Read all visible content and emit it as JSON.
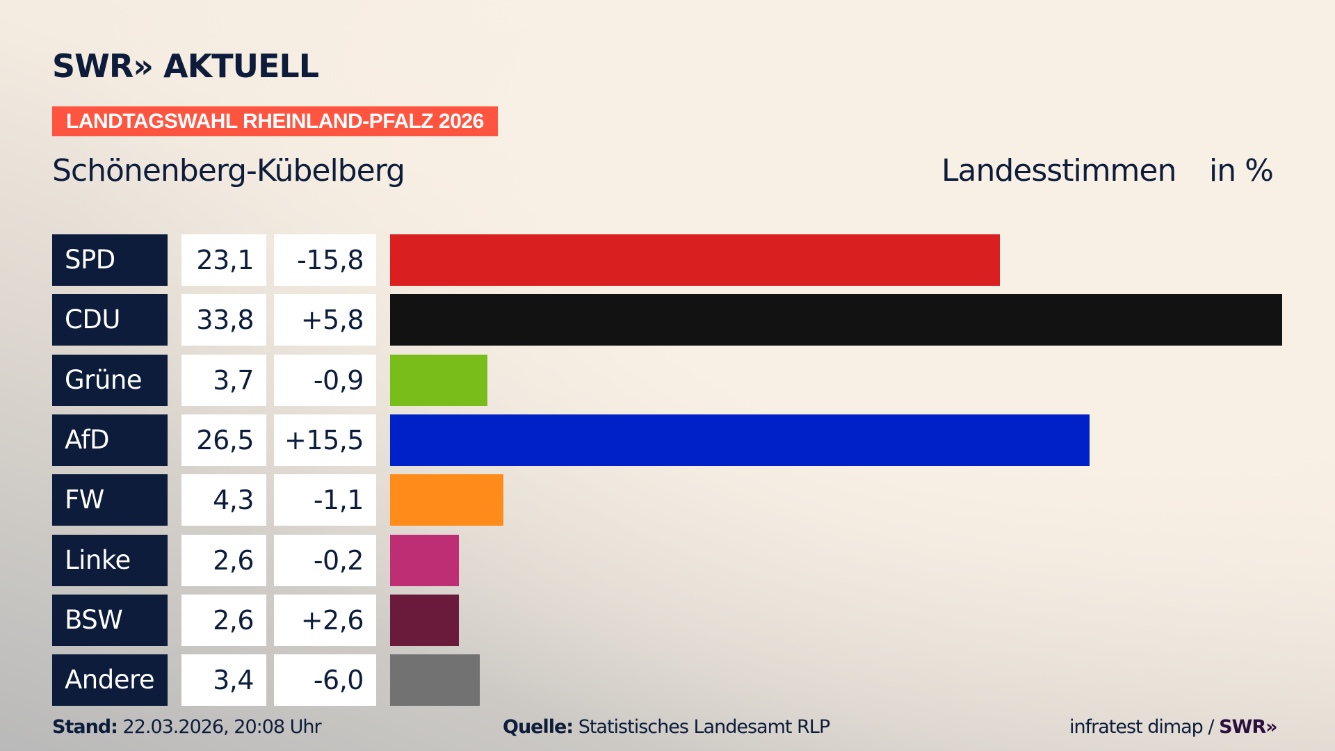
{
  "header": {
    "logo": "SWR» AKTUELL",
    "banner": "LANDTAGSWAHL RHEINLAND-PFALZ 2026",
    "location": "Schönenberg-Kübelberg",
    "measure": "Landesstimmen",
    "unit": "in %"
  },
  "chart_data": {
    "type": "bar",
    "orientation": "horizontal",
    "title": "Schönenberg-Kübelberg – Landesstimmen in %",
    "xlim": [
      0,
      33.8
    ],
    "categories": [
      "SPD",
      "CDU",
      "Grüne",
      "AfD",
      "FW",
      "Linke",
      "BSW",
      "Andere"
    ],
    "values": [
      23.1,
      33.8,
      3.7,
      26.5,
      4.3,
      2.6,
      2.6,
      3.4
    ],
    "value_labels": [
      "23,1",
      "33,8",
      "3,7",
      "26,5",
      "4,3",
      "2,6",
      "2,6",
      "3,4"
    ],
    "diffs": [
      -15.8,
      5.8,
      -0.9,
      15.5,
      -1.1,
      -0.2,
      2.6,
      -6.0
    ],
    "diff_labels": [
      "-15,8",
      "+5,8",
      "-0,9",
      "+15,5",
      "-1,1",
      "-0,2",
      "+2,6",
      "-6,0"
    ],
    "colors": [
      "#d91f1f",
      "#121212",
      "#79bd1a",
      "#0020c8",
      "#ff8c1a",
      "#bd2e74",
      "#6a1a3a",
      "#727272"
    ]
  },
  "footer": {
    "stand_label": "Stand:",
    "stand_value": "22.03.2026, 20:08 Uhr",
    "source_label": "Quelle:",
    "source_value": "Statistisches Landesamt RLP",
    "credit": "infratest dimap /",
    "credit_logo": "SWR»"
  }
}
